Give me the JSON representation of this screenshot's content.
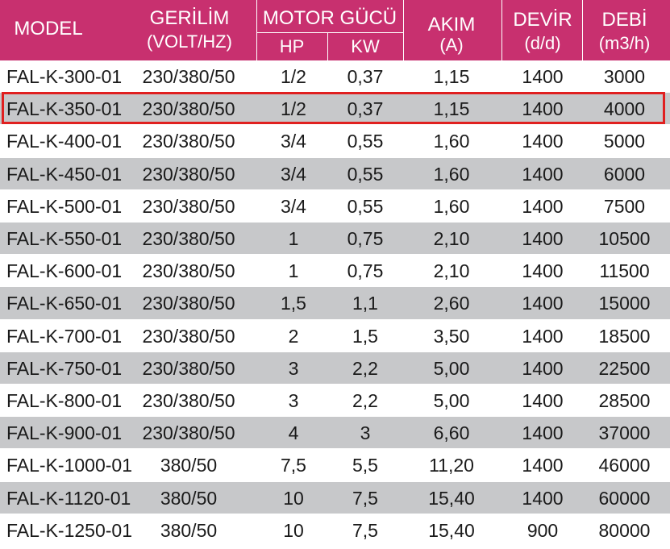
{
  "colors": {
    "header_bg": "#c8306f",
    "row_alt_bg": "#c7c8ca",
    "highlight_border": "#e02020"
  },
  "header": {
    "model": "MODEL",
    "gerilim": "GERİLİM",
    "gerilim_unit": "(VOLT/HZ)",
    "motor_gucu": "MOTOR GÜCÜ",
    "hp": "HP",
    "kw": "KW",
    "akim": "AKIM",
    "akim_unit": "(A)",
    "devir": "DEVİR",
    "devir_unit": "(d/d)",
    "debi": "DEBİ",
    "debi_unit": "(m3/h)"
  },
  "rows": [
    {
      "model": "FAL-K-300-01",
      "volt": "230/380/50",
      "hp": "1/2",
      "kw": "0,37",
      "akim": "1,15",
      "devir": "1400",
      "debi": "3000"
    },
    {
      "model": "FAL-K-350-01",
      "volt": "230/380/50",
      "hp": "1/2",
      "kw": "0,37",
      "akim": "1,15",
      "devir": "1400",
      "debi": "4000"
    },
    {
      "model": "FAL-K-400-01",
      "volt": "230/380/50",
      "hp": "3/4",
      "kw": "0,55",
      "akim": "1,60",
      "devir": "1400",
      "debi": "5000"
    },
    {
      "model": "FAL-K-450-01",
      "volt": "230/380/50",
      "hp": "3/4",
      "kw": "0,55",
      "akim": "1,60",
      "devir": "1400",
      "debi": "6000"
    },
    {
      "model": "FAL-K-500-01",
      "volt": "230/380/50",
      "hp": "3/4",
      "kw": "0,55",
      "akim": "1,60",
      "devir": "1400",
      "debi": "7500"
    },
    {
      "model": "FAL-K-550-01",
      "volt": "230/380/50",
      "hp": "1",
      "kw": "0,75",
      "akim": "2,10",
      "devir": "1400",
      "debi": "10500"
    },
    {
      "model": "FAL-K-600-01",
      "volt": "230/380/50",
      "hp": "1",
      "kw": "0,75",
      "akim": "2,10",
      "devir": "1400",
      "debi": "11500"
    },
    {
      "model": "FAL-K-650-01",
      "volt": "230/380/50",
      "hp": "1,5",
      "kw": "1,1",
      "akim": "2,60",
      "devir": "1400",
      "debi": "15000"
    },
    {
      "model": "FAL-K-700-01",
      "volt": "230/380/50",
      "hp": "2",
      "kw": "1,5",
      "akim": "3,50",
      "devir": "1400",
      "debi": "18500"
    },
    {
      "model": "FAL-K-750-01",
      "volt": "230/380/50",
      "hp": "3",
      "kw": "2,2",
      "akim": "5,00",
      "devir": "1400",
      "debi": "22500"
    },
    {
      "model": "FAL-K-800-01",
      "volt": "230/380/50",
      "hp": "3",
      "kw": "2,2",
      "akim": "5,00",
      "devir": "1400",
      "debi": "28500"
    },
    {
      "model": "FAL-K-900-01",
      "volt": "230/380/50",
      "hp": "4",
      "kw": "3",
      "akim": "6,60",
      "devir": "1400",
      "debi": "37000"
    },
    {
      "model": "FAL-K-1000-01",
      "volt": "380/50",
      "hp": "7,5",
      "kw": "5,5",
      "akim": "11,20",
      "devir": "1400",
      "debi": "46000"
    },
    {
      "model": "FAL-K-1120-01",
      "volt": "380/50",
      "hp": "10",
      "kw": "7,5",
      "akim": "15,40",
      "devir": "1400",
      "debi": "60000"
    },
    {
      "model": "FAL-K-1250-01",
      "volt": "380/50",
      "hp": "10",
      "kw": "7,5",
      "akim": "15,40",
      "devir": "900",
      "debi": "80000"
    }
  ]
}
